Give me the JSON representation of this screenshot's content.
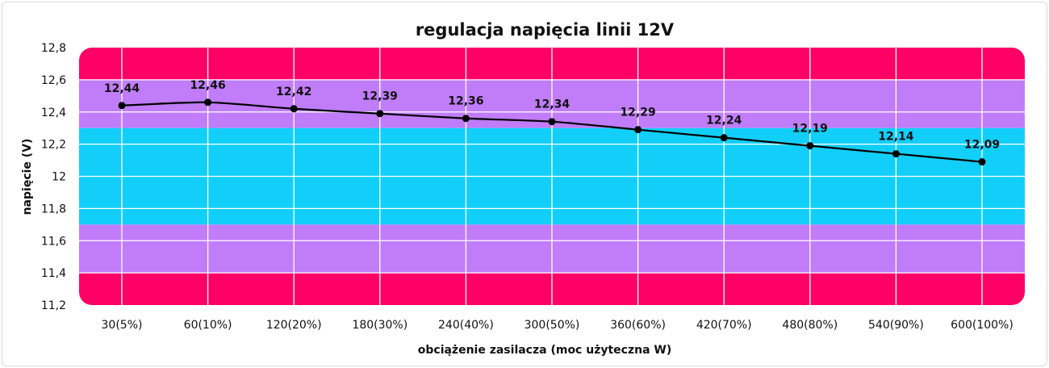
{
  "chart_data": {
    "type": "line",
    "title": "regulacja napięcia linii 12V",
    "xlabel": "obciążenie zasilacza (moc użyteczna W)",
    "ylabel": "napięcie (V)",
    "ylim": [
      11.2,
      12.8
    ],
    "yticks": [
      "12,8",
      "12,6",
      "12,4",
      "12,2",
      "12",
      "11,8",
      "11,6",
      "11,4",
      "11,2"
    ],
    "yticks_values": [
      12.8,
      12.6,
      12.4,
      12.2,
      12.0,
      11.8,
      11.6,
      11.4,
      11.2
    ],
    "categories": [
      "30(5%)",
      "60(10%)",
      "120(20%)",
      "180(30%)",
      "240(40%)",
      "300(50%)",
      "360(60%)",
      "420(70%)",
      "480(80%)",
      "540(90%)",
      "600(100%)"
    ],
    "values": [
      12.44,
      12.46,
      12.42,
      12.39,
      12.36,
      12.34,
      12.29,
      12.24,
      12.19,
      12.14,
      12.09
    ],
    "data_labels": [
      "12,44",
      "12,46",
      "12,42",
      "12,39",
      "12,36",
      "12,34",
      "12,29",
      "12,24",
      "12,19",
      "12,14",
      "12,09"
    ],
    "grid": true,
    "bands": [
      {
        "from": 12.6,
        "to": 12.8,
        "color": "#ff0066"
      },
      {
        "from": 12.3,
        "to": 12.6,
        "color": "#c07cf9"
      },
      {
        "from": 11.7,
        "to": 12.3,
        "color": "#12cffa"
      },
      {
        "from": 11.4,
        "to": 11.7,
        "color": "#c07cf9"
      },
      {
        "from": 11.2,
        "to": 11.4,
        "color": "#ff0066"
      }
    ],
    "line_color": "#000000"
  }
}
